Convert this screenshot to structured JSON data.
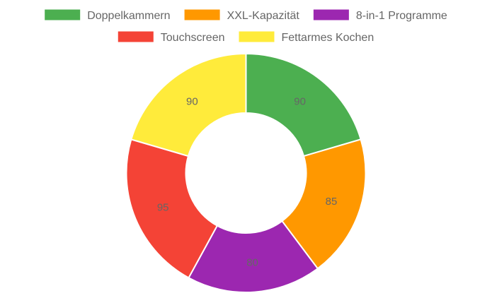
{
  "chart_data": {
    "type": "pie",
    "variant": "doughnut",
    "legend_position": "top",
    "categories": [
      "Doppelkammern",
      "XXL-Kapazität",
      "8-in-1 Programme",
      "Touchscreen",
      "Fettarmes Kochen"
    ],
    "values": [
      90,
      85,
      80,
      95,
      90
    ],
    "colors": [
      "#4caf50",
      "#ff9800",
      "#9c27b0",
      "#f44336",
      "#ffeb3b"
    ]
  }
}
